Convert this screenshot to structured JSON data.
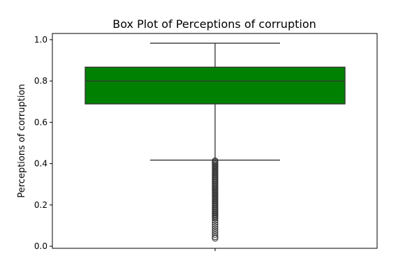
{
  "chart_data": {
    "type": "box",
    "title": "Box Plot of Perceptions of corruption",
    "xlabel": "",
    "ylabel": "Perceptions of corruption",
    "ylim": [
      -0.01,
      1.03
    ],
    "y_ticks": [
      0.0,
      0.2,
      0.4,
      0.6,
      0.8,
      1.0
    ],
    "y_tick_labels": [
      "0.0",
      "0.2",
      "0.4",
      "0.6",
      "0.8",
      "1.0"
    ],
    "box": {
      "whisker_low": 0.417,
      "q1": 0.689,
      "median": 0.8,
      "q3": 0.867,
      "whisker_high": 0.983
    },
    "outliers": [
      0.415,
      0.41,
      0.405,
      0.4,
      0.395,
      0.39,
      0.385,
      0.38,
      0.375,
      0.37,
      0.365,
      0.36,
      0.355,
      0.35,
      0.345,
      0.34,
      0.335,
      0.33,
      0.325,
      0.32,
      0.315,
      0.31,
      0.305,
      0.3,
      0.295,
      0.29,
      0.285,
      0.28,
      0.275,
      0.27,
      0.265,
      0.26,
      0.255,
      0.25,
      0.245,
      0.24,
      0.235,
      0.23,
      0.225,
      0.22,
      0.215,
      0.21,
      0.205,
      0.2,
      0.195,
      0.19,
      0.185,
      0.18,
      0.175,
      0.17,
      0.165,
      0.16,
      0.155,
      0.15,
      0.145,
      0.14,
      0.135,
      0.125,
      0.115,
      0.105,
      0.095,
      0.085,
      0.075,
      0.065,
      0.055,
      0.045,
      0.038
    ],
    "colors": {
      "box_fill": "#008000",
      "lines": "#333333",
      "axes": "#000000"
    },
    "grid": false,
    "legend": "none"
  }
}
